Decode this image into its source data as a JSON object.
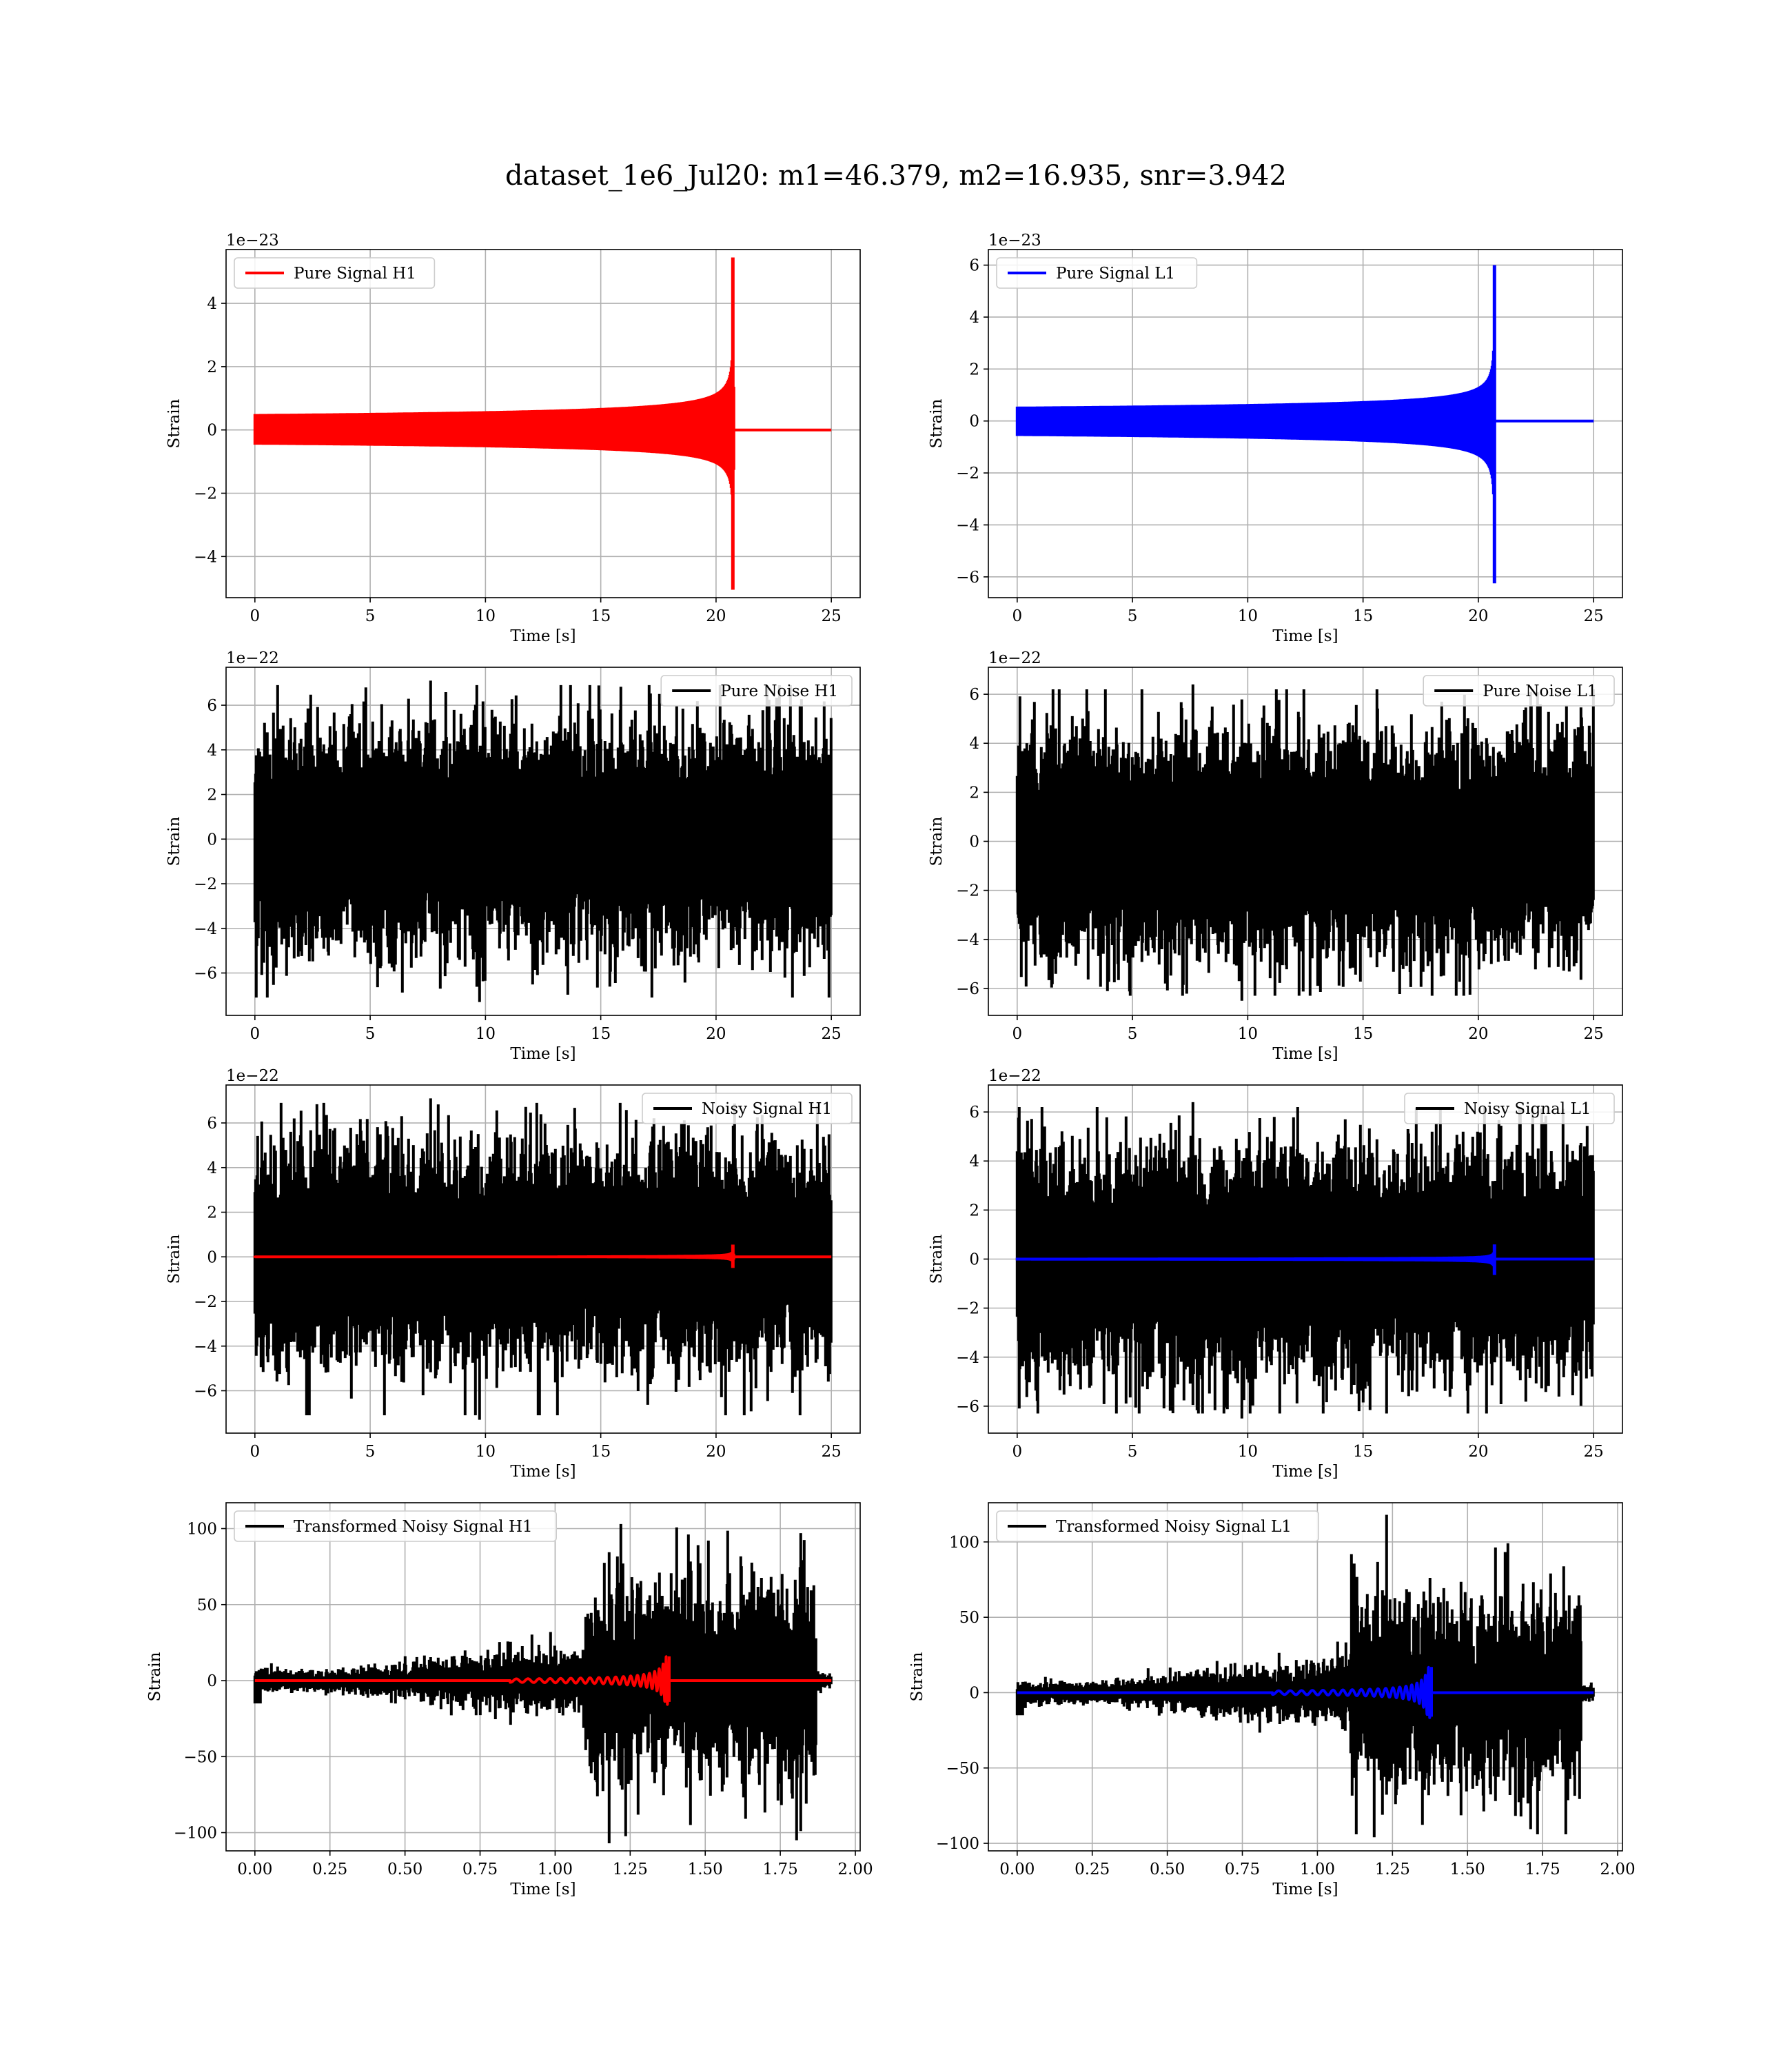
{
  "figure": {
    "title": "dataset_1e6_Jul20: m1=46.379, m2=16.935, snr=3.942"
  },
  "colors": {
    "h1_signal": "#ff0000",
    "l1_signal": "#0000ff",
    "noise": "#000000",
    "grid": "#b0b0b0"
  },
  "chart_data": [
    {
      "id": "pure-signal-h1",
      "type": "line",
      "xlabel": "Time [s]",
      "ylabel": "Strain",
      "offset_text": "1e−23",
      "xlim": [
        -1.25,
        26.25
      ],
      "ylim": [
        -5.3,
        5.7
      ],
      "xticks": [
        0,
        5,
        10,
        15,
        20,
        25
      ],
      "xtick_labels": [
        "0",
        "5",
        "10",
        "15",
        "20",
        "25"
      ],
      "yticks": [
        -4,
        -2,
        0,
        2,
        4
      ],
      "ytick_labels": [
        "−4",
        "−2",
        "0",
        "2",
        "4"
      ],
      "grid": true,
      "legend_position": "upper-left",
      "series": [
        {
          "name": "Pure Signal H1",
          "kind": "chirp",
          "color": "#ff0000",
          "merger_time": 20.75,
          "amplitude_max": 5.45,
          "amplitude_min": -5.05,
          "x_range": [
            0,
            25
          ],
          "in_legend": true
        }
      ]
    },
    {
      "id": "pure-signal-l1",
      "type": "line",
      "xlabel": "Time [s]",
      "ylabel": "Strain",
      "offset_text": "1e−23",
      "xlim": [
        -1.25,
        26.25
      ],
      "ylim": [
        -6.8,
        6.6
      ],
      "xticks": [
        0,
        5,
        10,
        15,
        20,
        25
      ],
      "xtick_labels": [
        "0",
        "5",
        "10",
        "15",
        "20",
        "25"
      ],
      "yticks": [
        -6,
        -4,
        -2,
        0,
        2,
        4,
        6
      ],
      "ytick_labels": [
        "−6",
        "−4",
        "−2",
        "0",
        "2",
        "4",
        "6"
      ],
      "grid": true,
      "legend_position": "upper-left",
      "series": [
        {
          "name": "Pure Signal L1",
          "kind": "chirp",
          "color": "#0000ff",
          "merger_time": 20.7,
          "amplitude_max": 6.0,
          "amplitude_min": -6.25,
          "x_range": [
            0,
            25
          ],
          "in_legend": true
        }
      ]
    },
    {
      "id": "pure-noise-h1",
      "type": "line",
      "xlabel": "Time [s]",
      "ylabel": "Strain",
      "offset_text": "1e−22",
      "xlim": [
        -1.25,
        26.25
      ],
      "ylim": [
        -7.9,
        7.7
      ],
      "xticks": [
        0,
        5,
        10,
        15,
        20,
        25
      ],
      "xtick_labels": [
        "0",
        "5",
        "10",
        "15",
        "20",
        "25"
      ],
      "yticks": [
        -6,
        -4,
        -2,
        0,
        2,
        4,
        6
      ],
      "ytick_labels": [
        "−6",
        "−4",
        "−2",
        "0",
        "2",
        "4",
        "6"
      ],
      "grid": true,
      "legend_position": "upper-right",
      "series": [
        {
          "name": "Pure Noise H1",
          "kind": "noise",
          "color": "#000000",
          "band": [
            -4.0,
            4.2
          ],
          "peak_max": 7.1,
          "peak_min": -7.3,
          "x_range": [
            0,
            25
          ],
          "in_legend": true
        }
      ]
    },
    {
      "id": "pure-noise-l1",
      "type": "line",
      "xlabel": "Time [s]",
      "ylabel": "Strain",
      "offset_text": "1e−22",
      "xlim": [
        -1.25,
        26.25
      ],
      "ylim": [
        -7.1,
        7.1
      ],
      "xticks": [
        0,
        5,
        10,
        15,
        20,
        25
      ],
      "xtick_labels": [
        "0",
        "5",
        "10",
        "15",
        "20",
        "25"
      ],
      "yticks": [
        -6,
        -4,
        -2,
        0,
        2,
        4,
        6
      ],
      "ytick_labels": [
        "−6",
        "−4",
        "−2",
        "0",
        "2",
        "4",
        "6"
      ],
      "grid": true,
      "legend_position": "upper-right",
      "series": [
        {
          "name": "Pure Noise L1",
          "kind": "noise",
          "color": "#000000",
          "band": [
            -4.0,
            3.8
          ],
          "peak_max": 6.4,
          "peak_min": -6.5,
          "x_range": [
            0,
            25
          ],
          "in_legend": true
        }
      ]
    },
    {
      "id": "noisy-signal-h1",
      "type": "line",
      "xlabel": "Time [s]",
      "ylabel": "Strain",
      "offset_text": "1e−22",
      "xlim": [
        -1.25,
        26.25
      ],
      "ylim": [
        -7.9,
        7.7
      ],
      "xticks": [
        0,
        5,
        10,
        15,
        20,
        25
      ],
      "xtick_labels": [
        "0",
        "5",
        "10",
        "15",
        "20",
        "25"
      ],
      "yticks": [
        -6,
        -4,
        -2,
        0,
        2,
        4,
        6
      ],
      "ytick_labels": [
        "−6",
        "−4",
        "−2",
        "0",
        "2",
        "4",
        "6"
      ],
      "grid": true,
      "legend_position": "upper-right",
      "series": [
        {
          "name": "Noisy Signal H1",
          "kind": "noise",
          "color": "#000000",
          "band": [
            -4.0,
            4.2
          ],
          "peak_max": 7.1,
          "peak_min": -7.3,
          "x_range": [
            0,
            25
          ],
          "in_legend": true
        },
        {
          "name": "",
          "kind": "chirp",
          "color": "#ff0000",
          "merger_time": 20.75,
          "amplitude_max": 0.55,
          "amplitude_min": -0.5,
          "x_range": [
            0,
            25
          ],
          "in_legend": false
        }
      ]
    },
    {
      "id": "noisy-signal-l1",
      "type": "line",
      "xlabel": "Time [s]",
      "ylabel": "Strain",
      "offset_text": "1e−22",
      "xlim": [
        -1.25,
        26.25
      ],
      "ylim": [
        -7.1,
        7.1
      ],
      "xticks": [
        0,
        5,
        10,
        15,
        20,
        25
      ],
      "xtick_labels": [
        "0",
        "5",
        "10",
        "15",
        "20",
        "25"
      ],
      "yticks": [
        -6,
        -4,
        -2,
        0,
        2,
        4,
        6
      ],
      "ytick_labels": [
        "−6",
        "−4",
        "−2",
        "0",
        "2",
        "4",
        "6"
      ],
      "grid": true,
      "legend_position": "upper-right",
      "series": [
        {
          "name": "Noisy Signal L1",
          "kind": "noise",
          "color": "#000000",
          "band": [
            -4.0,
            3.8
          ],
          "peak_max": 6.4,
          "peak_min": -6.5,
          "x_range": [
            0,
            25
          ],
          "in_legend": true
        },
        {
          "name": "",
          "kind": "chirp",
          "color": "#0000ff",
          "merger_time": 20.7,
          "amplitude_max": 0.6,
          "amplitude_min": -0.65,
          "x_range": [
            0,
            25
          ],
          "in_legend": false
        }
      ]
    },
    {
      "id": "transformed-noisy-signal-h1",
      "type": "line",
      "xlabel": "Time [s]",
      "ylabel": "Strain",
      "offset_text": "",
      "xlim": [
        -0.096,
        2.016
      ],
      "ylim": [
        -112,
        117
      ],
      "xticks": [
        0,
        0.25,
        0.5,
        0.75,
        1.0,
        1.25,
        1.5,
        1.75,
        2.0
      ],
      "xtick_labels": [
        "0.00",
        "0.25",
        "0.50",
        "0.75",
        "1.00",
        "1.25",
        "1.50",
        "1.75",
        "2.00"
      ],
      "yticks": [
        -100,
        -50,
        0,
        50,
        100
      ],
      "ytick_labels": [
        "−100",
        "−50",
        "0",
        "50",
        "100"
      ],
      "grid": true,
      "legend_position": "upper-left",
      "series": [
        {
          "name": "Transformed Noisy Signal H1",
          "kind": "transformed",
          "color": "#000000",
          "x_range": [
            0,
            1.92
          ],
          "jump_time": 1.1,
          "drop_time": 1.87,
          "peak_max": 103,
          "peak_min": -107,
          "in_legend": true
        },
        {
          "name": "",
          "kind": "chirp-short",
          "color": "#ff0000",
          "merger_time": 1.38,
          "amplitude_max": 16,
          "amplitude_min": -14,
          "x_range": [
            0,
            1.92
          ],
          "in_legend": false
        }
      ]
    },
    {
      "id": "transformed-noisy-signal-l1",
      "type": "line",
      "xlabel": "Time [s]",
      "ylabel": "Strain",
      "offset_text": "",
      "xlim": [
        -0.096,
        2.016
      ],
      "ylim": [
        -105,
        126
      ],
      "xticks": [
        0,
        0.25,
        0.5,
        0.75,
        1.0,
        1.25,
        1.5,
        1.75,
        2.0
      ],
      "xtick_labels": [
        "0.00",
        "0.25",
        "0.50",
        "0.75",
        "1.00",
        "1.25",
        "1.50",
        "1.75",
        "2.00"
      ],
      "yticks": [
        -100,
        -50,
        0,
        50,
        100
      ],
      "ytick_labels": [
        "−100",
        "−50",
        "0",
        "50",
        "100"
      ],
      "grid": true,
      "legend_position": "upper-left",
      "series": [
        {
          "name": "Transformed Noisy Signal L1",
          "kind": "transformed",
          "color": "#000000",
          "x_range": [
            0,
            1.92
          ],
          "jump_time": 1.11,
          "drop_time": 1.88,
          "peak_max": 118,
          "peak_min": -96,
          "in_legend": true
        },
        {
          "name": "",
          "kind": "chirp-short",
          "color": "#0000ff",
          "merger_time": 1.38,
          "amplitude_max": 17,
          "amplitude_min": -16,
          "x_range": [
            0,
            1.92
          ],
          "in_legend": false
        }
      ]
    }
  ]
}
